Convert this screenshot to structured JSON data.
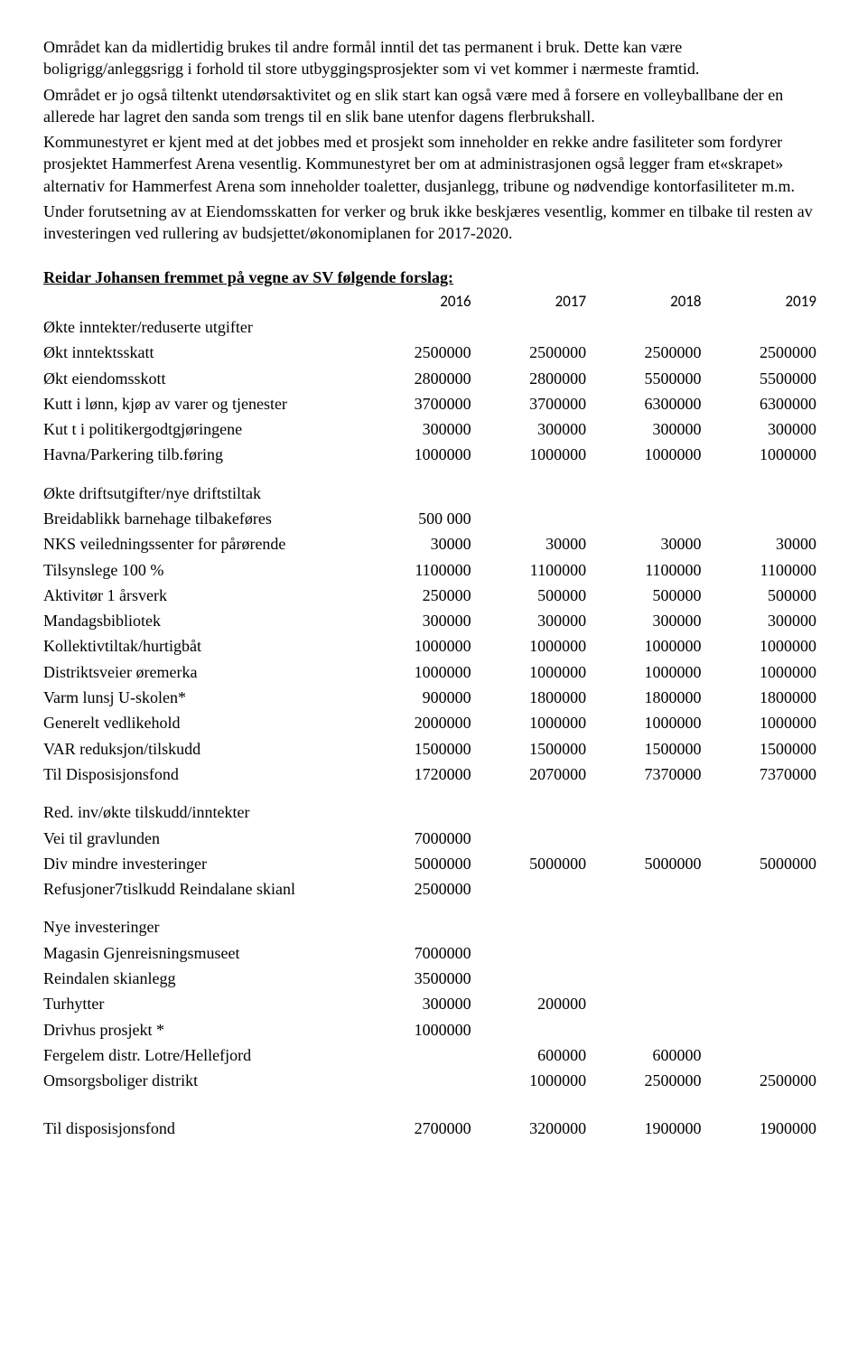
{
  "paragraphs": [
    "Området kan da midlertidig brukes til andre formål inntil det tas permanent i bruk. Dette kan være boligrigg/anleggsrigg i forhold til store utbyggingsprosjekter som vi vet kommer i nærmeste framtid.",
    "Området er jo også tiltenkt utendørsaktivitet og en slik start kan også være med å forsere en volleyballbane der en allerede har lagret den sanda som trengs til en slik bane utenfor dagens flerbrukshall.",
    "Kommunestyret er kjent med at det jobbes med et prosjekt som inneholder en rekke andre fasiliteter som fordyrer prosjektet Hammerfest Arena vesentlig. Kommunestyret  ber om at administrasjonen også legger fram et«skrapet» alternativ for Hammerfest Arena som inneholder toaletter, dusjanlegg, tribune og nødvendige kontorfasiliteter m.m.",
    "Under forutsetning av at Eiendomsskatten for verker og bruk ikke beskjæres vesentlig, kommer en tilbake til resten av investeringen ved rullering av budsjettet/økonomiplanen for 2017-2020."
  ],
  "proposal_heading": "Reidar Johansen fremmet på vegne av SV følgende forslag:",
  "years": [
    "2016",
    "2017",
    "2018",
    "2019"
  ],
  "sections": [
    {
      "title": "Økte inntekter/reduserte utgifter",
      "rows": [
        {
          "label": "Økt inntektsskatt",
          "v": [
            "2500000",
            "2500000",
            "2500000",
            "2500000"
          ]
        },
        {
          "label": "Økt eiendomsskott",
          "v": [
            "2800000",
            "2800000",
            "5500000",
            "5500000"
          ]
        },
        {
          "label": "Kutt i lønn, kjøp av varer og tjenester",
          "v": [
            "3700000",
            "3700000",
            "6300000",
            "6300000"
          ]
        },
        {
          "label": "Kut t i politikergodtgjøringene",
          "v": [
            "300000",
            "300000",
            "300000",
            "300000"
          ]
        },
        {
          "label": "Havna/Parkering tilb.føring",
          "v": [
            "1000000",
            "1000000",
            "1000000",
            "1000000"
          ]
        }
      ]
    },
    {
      "title": "Økte driftsutgifter/nye driftstiltak",
      "rows": [
        {
          "label": "Breidablikk barnehage tilbakeføres",
          "v": [
            "500 000",
            "",
            "",
            ""
          ]
        },
        {
          "label": "NKS veiledningssenter for pårørende",
          "v": [
            "30000",
            "30000",
            "30000",
            "30000"
          ]
        },
        {
          "label": "Tilsynslege 100 %",
          "v": [
            "1100000",
            "1100000",
            "1100000",
            "1100000"
          ]
        },
        {
          "label": "Aktivitør 1 årsverk",
          "v": [
            "250000",
            "500000",
            "500000",
            "500000"
          ]
        },
        {
          "label": "Mandagsbibliotek",
          "v": [
            "300000",
            "300000",
            "300000",
            "300000"
          ]
        },
        {
          "label": "Kollektivtiltak/hurtigbåt",
          "v": [
            "1000000",
            "1000000",
            "1000000",
            "1000000"
          ]
        },
        {
          "label": "Distriktsveier øremerka",
          "v": [
            "1000000",
            "1000000",
            "1000000",
            "1000000"
          ]
        },
        {
          "label": "Varm lunsj U-skolen*",
          "v": [
            "900000",
            "1800000",
            "1800000",
            "1800000"
          ]
        },
        {
          "label": "Generelt vedlikehold",
          "v": [
            "2000000",
            "1000000",
            "1000000",
            "1000000"
          ]
        },
        {
          "label": "VAR reduksjon/tilskudd",
          "v": [
            "1500000",
            "1500000",
            "1500000",
            "1500000"
          ]
        },
        {
          "label": "Til Disposisjonsfond",
          "v": [
            "1720000",
            "2070000",
            "7370000",
            "7370000"
          ]
        }
      ]
    },
    {
      "title": "Red. inv/økte tilskudd/inntekter",
      "rows": [
        {
          "label": "Vei til gravlunden",
          "v": [
            "7000000",
            "",
            "",
            ""
          ]
        },
        {
          "label": "Div mindre investeringer",
          "v": [
            "5000000",
            "5000000",
            "5000000",
            "5000000"
          ]
        },
        {
          "label": "Refusjoner7tislkudd Reindalane skianl",
          "v": [
            "2500000",
            "",
            "",
            ""
          ]
        }
      ]
    },
    {
      "title": "Nye investeringer",
      "rows": [
        {
          "label": "Magasin Gjenreisningsmuseet",
          "v": [
            "7000000",
            "",
            "",
            ""
          ]
        },
        {
          "label": "Reindalen skianlegg",
          "v": [
            "3500000",
            "",
            "",
            ""
          ]
        },
        {
          "label": "Turhytter",
          "v": [
            "300000",
            "200000",
            "",
            ""
          ]
        },
        {
          "label": "Drivhus prosjekt *",
          "v": [
            "1000000",
            "",
            "",
            ""
          ]
        },
        {
          "label": "Fergelem distr. Lotre/Hellefjord",
          "v": [
            "",
            "600000",
            "600000",
            ""
          ]
        },
        {
          "label": "Omsorgsboliger distrikt",
          "v": [
            "",
            "1000000",
            "2500000",
            "2500000"
          ]
        }
      ]
    }
  ],
  "footer_row": {
    "label": "Til disposisjonsfond",
    "v": [
      "2700000",
      "3200000",
      "1900000",
      "1900000"
    ]
  }
}
